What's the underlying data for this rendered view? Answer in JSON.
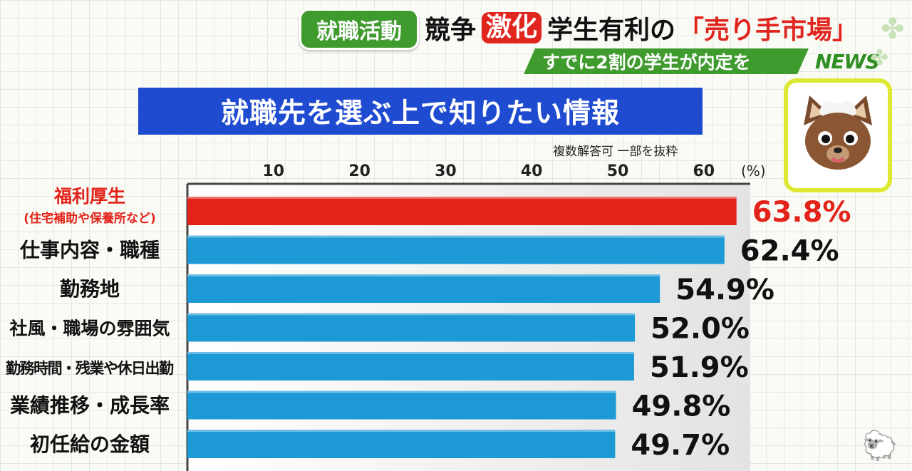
{
  "header": {
    "topic": "就職活動",
    "headline_pre": "競争",
    "headline_highlight": "激化",
    "headline_mid": "学生有利の",
    "headline_quote": "「売り手市場」",
    "subheadline": "すでに2割の学生が内定を",
    "news_logo": "NEWS"
  },
  "colors": {
    "highlight_bar": "#e2231a",
    "bar": "#1d9ad6",
    "title_bg": "#1f4bd0",
    "green": "#3f9b2e"
  },
  "chart_data": {
    "type": "bar",
    "orientation": "horizontal",
    "title": "就職先を選ぶ上で知りたい情報",
    "note": "複数解答可 一部を抜粋",
    "unit_label": "(%)",
    "xlim": [
      0,
      65
    ],
    "ticks": [
      "10",
      "20",
      "30",
      "40",
      "50",
      "60"
    ],
    "tick_values": [
      10,
      20,
      30,
      40,
      50,
      60
    ],
    "categories": [
      {
        "label": "福利厚生",
        "sublabel": "(住宅補助や保養所など)",
        "highlight": true
      },
      {
        "label": "仕事内容・職種",
        "sublabel": "",
        "highlight": false
      },
      {
        "label": "勤務地",
        "sublabel": "",
        "highlight": false
      },
      {
        "label": "社風・職場の雰囲気",
        "sublabel": "",
        "highlight": false
      },
      {
        "label": "勤務時間・残業や休日出勤",
        "sublabel": "",
        "highlight": false
      },
      {
        "label": "業績推移・成長率",
        "sublabel": "",
        "highlight": false
      },
      {
        "label": "初任給の金額",
        "sublabel": "",
        "highlight": false
      }
    ],
    "values": [
      63.8,
      62.4,
      54.9,
      52.0,
      51.9,
      49.8,
      49.7
    ],
    "value_labels": [
      "63.8%",
      "62.4%",
      "54.9%",
      "52.0%",
      "51.9%",
      "49.8%",
      "49.7%"
    ]
  }
}
